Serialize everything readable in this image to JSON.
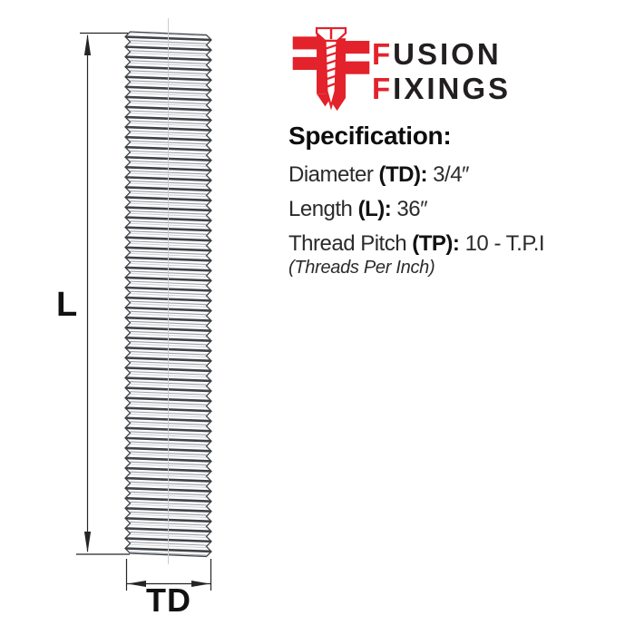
{
  "logo": {
    "line1_first": "F",
    "line1_rest": "USION",
    "line2_first": "F",
    "line2_rest": "IXINGS"
  },
  "colors": {
    "brand_red": "#e3222b",
    "ink": "#231f20"
  },
  "diagram": {
    "length_label": "L",
    "diameter_label": "TD"
  },
  "spec": {
    "heading": "Specification:",
    "rows": [
      {
        "label": "Diameter",
        "key": "(TD):",
        "value": "3/4″"
      },
      {
        "label": "Length",
        "key": "(L):",
        "value": "36″"
      },
      {
        "label": "Thread Pitch",
        "key": "(TP):",
        "value": "10 - T.P.I"
      }
    ],
    "note": "(Threads Per Inch)"
  }
}
